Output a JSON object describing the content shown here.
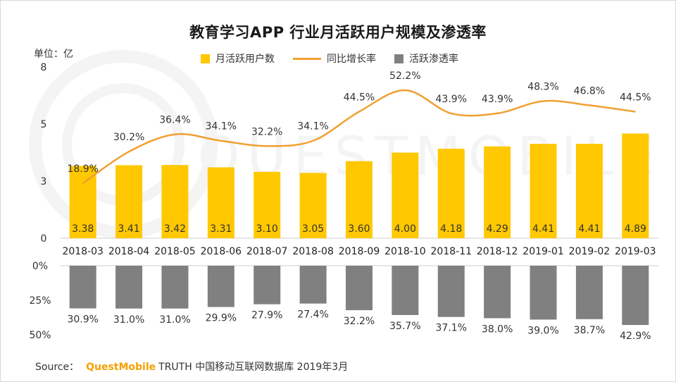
{
  "title": "教育学习APP 行业月活跃用户规模及渗透率",
  "unit_label": "单位：亿",
  "legend": [
    {
      "label": "月活跃用户数",
      "kind": "rect",
      "color": "#FFC800"
    },
    {
      "label": "同比增长率",
      "kind": "line",
      "color": "#F0A030"
    },
    {
      "label": "活跃渗透率",
      "kind": "rect",
      "color": "#808080"
    }
  ],
  "source": {
    "prefix": "Source：",
    "brand": "QuestMobile",
    "rest": "TRUTH 中国移动互联网数据库 2019年3月"
  },
  "watermark": "QUESTMOBILE",
  "chart_data": {
    "type": "bar",
    "categories": [
      "2018-03",
      "2018-04",
      "2018-05",
      "2018-06",
      "2018-07",
      "2018-08",
      "2018-09",
      "2018-10",
      "2018-11",
      "2018-12",
      "2019-01",
      "2019-02",
      "2019-03"
    ],
    "series": [
      {
        "name": "月活跃用户数",
        "type": "bar",
        "color": "#FFC800",
        "values": [
          3.38,
          3.41,
          3.42,
          3.31,
          3.1,
          3.05,
          3.6,
          4.0,
          4.18,
          4.29,
          4.41,
          4.41,
          4.89
        ],
        "labels": [
          "3.38",
          "3.41",
          "3.42",
          "3.31",
          "3.10",
          "3.05",
          "3.60",
          "4.00",
          "4.18",
          "4.29",
          "4.41",
          "4.41",
          "4.89"
        ]
      },
      {
        "name": "同比增长率",
        "type": "line",
        "color": "#F0A030",
        "values": [
          18.9,
          30.2,
          36.4,
          34.1,
          32.2,
          34.1,
          44.5,
          52.2,
          43.9,
          43.9,
          48.3,
          46.8,
          44.5
        ],
        "labels": [
          "18.9%",
          "30.2%",
          "36.4%",
          "34.1%",
          "32.2%",
          "34.1%",
          "44.5%",
          "52.2%",
          "43.9%",
          "43.9%",
          "48.3%",
          "46.8%",
          "44.5%"
        ]
      },
      {
        "name": "活跃渗透率",
        "type": "bar",
        "color": "#808080",
        "values": [
          30.9,
          31.0,
          31.0,
          29.9,
          27.9,
          27.4,
          32.2,
          35.7,
          37.1,
          38.0,
          39.0,
          38.7,
          42.9
        ],
        "labels": [
          "30.9%",
          "31.0%",
          "31.0%",
          "29.9%",
          "27.9%",
          "27.4%",
          "32.2%",
          "35.7%",
          "37.1%",
          "38.0%",
          "39.0%",
          "38.7%",
          "42.9%"
        ]
      }
    ],
    "y_axis_top": {
      "ticks": [
        "8",
        "5",
        "3",
        "0"
      ]
    },
    "y_axis_bottom": {
      "ticks": [
        "0%",
        "25%",
        "50%"
      ],
      "ylim": [
        0,
        50
      ],
      "inverted": true
    },
    "grid": false
  }
}
